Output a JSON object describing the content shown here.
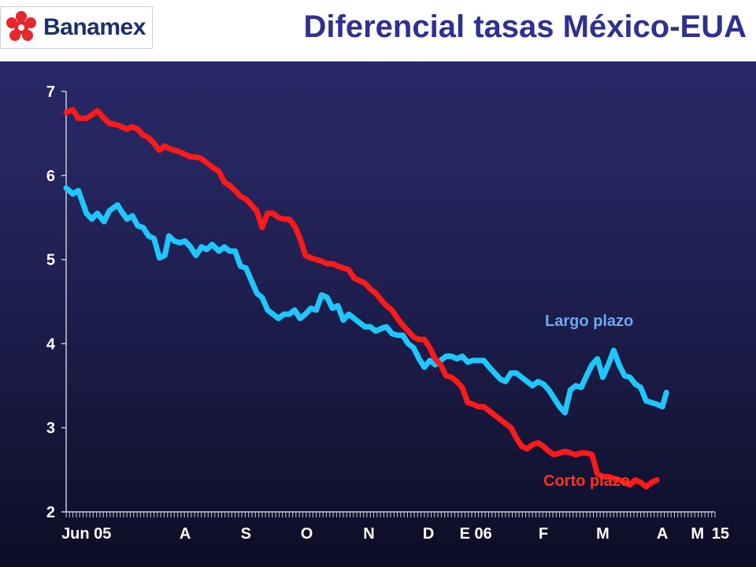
{
  "header": {
    "brand": "Banamex",
    "title": "Diferencial tasas México-EUA"
  },
  "colors": {
    "background_top": "#2a2a6c",
    "background_bottom": "#0d0d25",
    "title": "#2f3190",
    "brand_red": "#e5282e",
    "brand_navy": "#1b2f6e"
  },
  "chart_data": {
    "type": "line",
    "title": "Diferencial tasas México-EUA",
    "xlabel": "",
    "ylabel": "",
    "ylim": [
      2,
      7
    ],
    "yticks": [
      2,
      3,
      4,
      5,
      6,
      7
    ],
    "x_range": [
      0,
      48
    ],
    "grid": false,
    "xtick_labels": [
      {
        "label": "Jun 05",
        "x": 1.5
      },
      {
        "label": "A",
        "x": 8.8
      },
      {
        "label": "S",
        "x": 13.3
      },
      {
        "label": "O",
        "x": 17.8
      },
      {
        "label": "N",
        "x": 22.4
      },
      {
        "label": "D",
        "x": 26.8
      },
      {
        "label": "E 06",
        "x": 30.3
      },
      {
        "label": "F",
        "x": 35.3
      },
      {
        "label": "M",
        "x": 39.7
      },
      {
        "label": "A",
        "x": 44.1
      },
      {
        "label": "M",
        "x": 46.7
      },
      {
        "label": "15",
        "x": 48.4
      }
    ],
    "minor_ticks_per_unit": 4,
    "series": [
      {
        "name": "Largo plazo",
        "color": "#1ec8ff",
        "label_color": "#6aaaf0",
        "points": [
          [
            0,
            5.85
          ],
          [
            0.5,
            5.78
          ],
          [
            0.9,
            5.82
          ],
          [
            1.5,
            5.55
          ],
          [
            1.9,
            5.48
          ],
          [
            2.3,
            5.55
          ],
          [
            2.8,
            5.45
          ],
          [
            3.2,
            5.58
          ],
          [
            3.8,
            5.65
          ],
          [
            4.1,
            5.57
          ],
          [
            4.5,
            5.48
          ],
          [
            4.9,
            5.52
          ],
          [
            5.3,
            5.4
          ],
          [
            5.7,
            5.38
          ],
          [
            6.1,
            5.28
          ],
          [
            6.5,
            5.25
          ],
          [
            6.9,
            5.02
          ],
          [
            7.3,
            5.05
          ],
          [
            7.6,
            5.28
          ],
          [
            8,
            5.22
          ],
          [
            8.4,
            5.2
          ],
          [
            8.8,
            5.22
          ],
          [
            9.2,
            5.15
          ],
          [
            9.6,
            5.05
          ],
          [
            10,
            5.15
          ],
          [
            10.4,
            5.12
          ],
          [
            10.8,
            5.18
          ],
          [
            11.3,
            5.1
          ],
          [
            11.7,
            5.15
          ],
          [
            12.1,
            5.1
          ],
          [
            12.5,
            5.1
          ],
          [
            12.9,
            4.92
          ],
          [
            13.3,
            4.9
          ],
          [
            13.7,
            4.75
          ],
          [
            14.1,
            4.6
          ],
          [
            14.5,
            4.55
          ],
          [
            14.9,
            4.4
          ],
          [
            15.3,
            4.35
          ],
          [
            15.7,
            4.3
          ],
          [
            16.1,
            4.35
          ],
          [
            16.5,
            4.35
          ],
          [
            16.9,
            4.4
          ],
          [
            17.3,
            4.3
          ],
          [
            17.7,
            4.35
          ],
          [
            18.1,
            4.42
          ],
          [
            18.5,
            4.4
          ],
          [
            18.9,
            4.58
          ],
          [
            19.3,
            4.55
          ],
          [
            19.7,
            4.42
          ],
          [
            20.1,
            4.45
          ],
          [
            20.5,
            4.28
          ],
          [
            20.9,
            4.35
          ],
          [
            21.3,
            4.3
          ],
          [
            21.7,
            4.25
          ],
          [
            22.1,
            4.2
          ],
          [
            22.5,
            4.2
          ],
          [
            22.9,
            4.15
          ],
          [
            23.3,
            4.18
          ],
          [
            23.7,
            4.2
          ],
          [
            24.1,
            4.12
          ],
          [
            24.5,
            4.1
          ],
          [
            24.9,
            4.1
          ],
          [
            25.3,
            4.0
          ],
          [
            25.7,
            3.95
          ],
          [
            26.1,
            3.82
          ],
          [
            26.5,
            3.72
          ],
          [
            26.9,
            3.8
          ],
          [
            27.3,
            3.75
          ],
          [
            27.7,
            3.8
          ],
          [
            28.1,
            3.85
          ],
          [
            28.5,
            3.85
          ],
          [
            28.9,
            3.82
          ],
          [
            29.3,
            3.85
          ],
          [
            29.7,
            3.78
          ],
          [
            30.1,
            3.8
          ],
          [
            30.5,
            3.8
          ],
          [
            30.9,
            3.8
          ],
          [
            31.3,
            3.72
          ],
          [
            31.7,
            3.65
          ],
          [
            32.1,
            3.58
          ],
          [
            32.5,
            3.55
          ],
          [
            32.9,
            3.65
          ],
          [
            33.3,
            3.65
          ],
          [
            33.7,
            3.6
          ],
          [
            34.1,
            3.55
          ],
          [
            34.5,
            3.5
          ],
          [
            34.9,
            3.55
          ],
          [
            35.3,
            3.52
          ],
          [
            35.7,
            3.45
          ],
          [
            36.1,
            3.35
          ],
          [
            36.5,
            3.25
          ],
          [
            36.9,
            3.18
          ],
          [
            37.3,
            3.45
          ],
          [
            37.7,
            3.5
          ],
          [
            38.1,
            3.48
          ],
          [
            38.5,
            3.62
          ],
          [
            38.9,
            3.75
          ],
          [
            39.3,
            3.82
          ],
          [
            39.7,
            3.6
          ],
          [
            40.1,
            3.75
          ],
          [
            40.5,
            3.92
          ],
          [
            40.9,
            3.75
          ],
          [
            41.3,
            3.62
          ],
          [
            41.7,
            3.6
          ],
          [
            42.1,
            3.52
          ],
          [
            42.5,
            3.48
          ],
          [
            42.9,
            3.32
          ],
          [
            43.3,
            3.3
          ],
          [
            43.7,
            3.28
          ],
          [
            44.1,
            3.25
          ],
          [
            44.4,
            3.42
          ]
        ]
      },
      {
        "name": "Corto plazo",
        "color": "#ff1a1a",
        "label_color": "#ff3322",
        "points": [
          [
            0,
            6.75
          ],
          [
            0.5,
            6.78
          ],
          [
            0.9,
            6.68
          ],
          [
            1.5,
            6.68
          ],
          [
            1.9,
            6.72
          ],
          [
            2.3,
            6.77
          ],
          [
            2.8,
            6.68
          ],
          [
            3.2,
            6.62
          ],
          [
            3.8,
            6.6
          ],
          [
            4.1,
            6.58
          ],
          [
            4.5,
            6.55
          ],
          [
            4.9,
            6.58
          ],
          [
            5.3,
            6.55
          ],
          [
            5.7,
            6.48
          ],
          [
            6.1,
            6.45
          ],
          [
            6.5,
            6.38
          ],
          [
            6.9,
            6.3
          ],
          [
            7.3,
            6.35
          ],
          [
            7.6,
            6.32
          ],
          [
            8,
            6.3
          ],
          [
            8.4,
            6.28
          ],
          [
            8.8,
            6.25
          ],
          [
            9.2,
            6.22
          ],
          [
            9.6,
            6.22
          ],
          [
            10,
            6.2
          ],
          [
            10.4,
            6.15
          ],
          [
            10.8,
            6.1
          ],
          [
            11.3,
            6.05
          ],
          [
            11.7,
            5.92
          ],
          [
            12.1,
            5.88
          ],
          [
            12.5,
            5.82
          ],
          [
            12.9,
            5.75
          ],
          [
            13.3,
            5.72
          ],
          [
            13.7,
            5.65
          ],
          [
            14.1,
            5.58
          ],
          [
            14.5,
            5.38
          ],
          [
            14.9,
            5.55
          ],
          [
            15.3,
            5.55
          ],
          [
            15.7,
            5.5
          ],
          [
            16.1,
            5.48
          ],
          [
            16.5,
            5.48
          ],
          [
            16.9,
            5.4
          ],
          [
            17.3,
            5.25
          ],
          [
            17.7,
            5.05
          ],
          [
            18.1,
            5.02
          ],
          [
            18.5,
            5.0
          ],
          [
            18.9,
            4.98
          ],
          [
            19.3,
            4.95
          ],
          [
            19.7,
            4.95
          ],
          [
            20.1,
            4.92
          ],
          [
            20.5,
            4.9
          ],
          [
            20.9,
            4.88
          ],
          [
            21.3,
            4.78
          ],
          [
            21.7,
            4.75
          ],
          [
            22.1,
            4.72
          ],
          [
            22.5,
            4.65
          ],
          [
            22.9,
            4.6
          ],
          [
            23.3,
            4.52
          ],
          [
            23.7,
            4.45
          ],
          [
            24.1,
            4.4
          ],
          [
            24.5,
            4.3
          ],
          [
            24.9,
            4.22
          ],
          [
            25.3,
            4.15
          ],
          [
            25.7,
            4.08
          ],
          [
            26.1,
            4.05
          ],
          [
            26.5,
            4.05
          ],
          [
            26.9,
            3.95
          ],
          [
            27.3,
            3.82
          ],
          [
            27.7,
            3.75
          ],
          [
            28.1,
            3.62
          ],
          [
            28.5,
            3.6
          ],
          [
            28.9,
            3.55
          ],
          [
            29.3,
            3.48
          ],
          [
            29.7,
            3.3
          ],
          [
            30.1,
            3.28
          ],
          [
            30.5,
            3.25
          ],
          [
            30.9,
            3.25
          ],
          [
            31.3,
            3.2
          ],
          [
            31.7,
            3.15
          ],
          [
            32.1,
            3.1
          ],
          [
            32.5,
            3.05
          ],
          [
            32.9,
            3.0
          ],
          [
            33.3,
            2.88
          ],
          [
            33.7,
            2.78
          ],
          [
            34.1,
            2.75
          ],
          [
            34.5,
            2.8
          ],
          [
            34.9,
            2.82
          ],
          [
            35.3,
            2.78
          ],
          [
            35.7,
            2.72
          ],
          [
            36.1,
            2.68
          ],
          [
            36.5,
            2.7
          ],
          [
            36.9,
            2.72
          ],
          [
            37.3,
            2.7
          ],
          [
            37.7,
            2.68
          ],
          [
            38.1,
            2.7
          ],
          [
            38.5,
            2.7
          ],
          [
            38.9,
            2.68
          ],
          [
            39.3,
            2.45
          ],
          [
            39.7,
            2.42
          ],
          [
            40.1,
            2.42
          ],
          [
            40.5,
            2.4
          ],
          [
            40.9,
            2.38
          ],
          [
            41.3,
            2.35
          ],
          [
            41.7,
            2.32
          ],
          [
            42.1,
            2.38
          ],
          [
            42.5,
            2.35
          ],
          [
            42.9,
            2.3
          ],
          [
            43.3,
            2.35
          ],
          [
            43.7,
            2.38
          ]
        ]
      }
    ]
  }
}
